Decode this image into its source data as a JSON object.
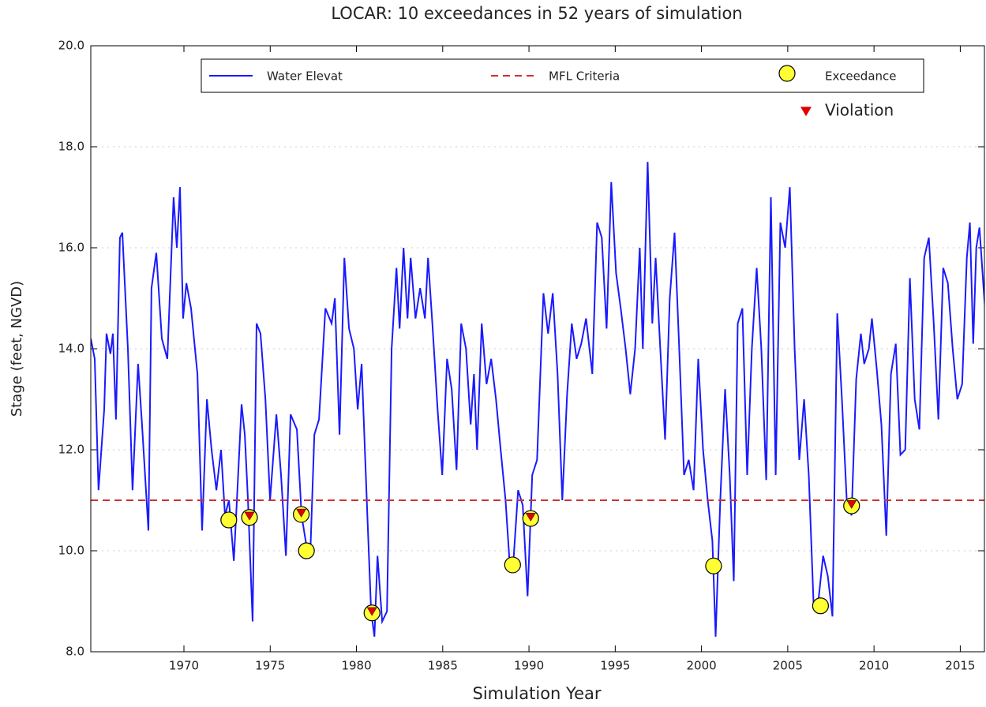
{
  "chart_data": {
    "type": "line",
    "title": "LOCAR: 10 exceedances in 52 years of simulation",
    "x_label": "Simulation Year",
    "y_label": "Stage (feet, NGVD)",
    "xlim": [
      1964.6,
      2016.4
    ],
    "ylim": [
      8,
      20
    ],
    "xticks": [
      1970,
      1975,
      1980,
      1985,
      1990,
      1995,
      2000,
      2005,
      2010,
      2015
    ],
    "yticks": [
      {
        "value": 8,
        "label": "8.0"
      },
      {
        "value": 10,
        "label": "10.0"
      },
      {
        "value": 12,
        "label": "12.0"
      },
      {
        "value": 14,
        "label": "14.0"
      },
      {
        "value": 16,
        "label": "16.0"
      },
      {
        "value": 18,
        "label": "18.0"
      },
      {
        "value": 20,
        "label": "20.0"
      }
    ],
    "grid": true,
    "series": [
      {
        "name": "Water Elevat",
        "color": "#1a1aff",
        "x": [
          1964.6,
          1964.83,
          1965.05,
          1965.38,
          1965.51,
          1965.74,
          1965.88,
          1966.06,
          1966.29,
          1966.43,
          1966.75,
          1967.02,
          1967.34,
          1967.57,
          1967.94,
          1968.12,
          1968.4,
          1968.72,
          1969.04,
          1969.4,
          1969.59,
          1969.77,
          1969.95,
          1970.14,
          1970.41,
          1970.78,
          1971.05,
          1971.33,
          1971.6,
          1971.88,
          1972.15,
          1972.38,
          1972.61,
          1972.89,
          1973.07,
          1973.34,
          1973.53,
          1973.71,
          1973.98,
          1974.21,
          1974.44,
          1974.72,
          1974.99,
          1975.36,
          1975.63,
          1975.91,
          1976.18,
          1976.55,
          1976.82,
          1977.1,
          1977.33,
          1977.56,
          1977.83,
          1978.2,
          1978.56,
          1978.75,
          1979.02,
          1979.3,
          1979.57,
          1979.85,
          1980.07,
          1980.3,
          1980.62,
          1980.85,
          1981.04,
          1981.22,
          1981.49,
          1981.77,
          1982.04,
          1982.32,
          1982.5,
          1982.73,
          1982.96,
          1983.14,
          1983.42,
          1983.69,
          1983.97,
          1984.15,
          1984.42,
          1984.7,
          1984.97,
          1985.25,
          1985.52,
          1985.8,
          1986.07,
          1986.35,
          1986.62,
          1986.81,
          1986.99,
          1987.26,
          1987.54,
          1987.81,
          1988.09,
          1988.36,
          1988.64,
          1988.87,
          1989.1,
          1989.37,
          1989.64,
          1989.92,
          1990.19,
          1990.47,
          1990.84,
          1991.11,
          1991.38,
          1991.66,
          1991.93,
          1992.21,
          1992.48,
          1992.76,
          1993.03,
          1993.31,
          1993.67,
          1993.95,
          1994.22,
          1994.5,
          1994.77,
          1995.05,
          1995.32,
          1995.6,
          1995.87,
          1996.15,
          1996.42,
          1996.6,
          1996.88,
          1997.15,
          1997.34,
          1997.61,
          1997.89,
          1998.16,
          1998.44,
          1998.71,
          1998.99,
          1999.26,
          1999.54,
          1999.81,
          2000.09,
          2000.36,
          2000.63,
          2000.82,
          2001.09,
          2001.37,
          2001.64,
          2001.87,
          2002.1,
          2002.37,
          2002.65,
          2002.92,
          2003.2,
          2003.47,
          2003.75,
          2004.02,
          2004.3,
          2004.57,
          2004.85,
          2005.12,
          2005.4,
          2005.67,
          2005.95,
          2006.22,
          2006.5,
          2006.77,
          2007.05,
          2007.32,
          2007.59,
          2007.87,
          2008.14,
          2008.42,
          2008.7,
          2008.97,
          2009.24,
          2009.43,
          2009.7,
          2009.88,
          2010.16,
          2010.43,
          2010.71,
          2010.98,
          2011.26,
          2011.53,
          2011.81,
          2012.08,
          2012.36,
          2012.63,
          2012.91,
          2013.18,
          2013.46,
          2013.73,
          2014.01,
          2014.28,
          2014.56,
          2014.83,
          2015.11,
          2015.38,
          2015.56,
          2015.75,
          2015.93,
          2016.11,
          2016.43
        ],
        "values": [
          14.2,
          13.8,
          11.2,
          12.8,
          14.3,
          13.9,
          14.3,
          12.6,
          16.2,
          16.3,
          14.0,
          11.2,
          13.7,
          12.5,
          10.4,
          15.2,
          15.9,
          14.2,
          13.8,
          17.0,
          16.0,
          17.2,
          14.6,
          15.3,
          14.8,
          13.5,
          10.4,
          13.0,
          12.0,
          11.2,
          12.0,
          10.7,
          11.0,
          9.8,
          11.0,
          12.9,
          12.3,
          11.0,
          8.6,
          14.5,
          14.3,
          13.0,
          11.0,
          12.7,
          11.5,
          9.9,
          12.7,
          12.4,
          10.7,
          10.1,
          10.0,
          12.3,
          12.6,
          14.8,
          14.5,
          15.0,
          12.3,
          15.8,
          14.4,
          14.0,
          12.8,
          13.7,
          10.8,
          8.8,
          8.3,
          9.9,
          8.6,
          8.8,
          14.0,
          15.6,
          14.4,
          16.0,
          14.6,
          15.8,
          14.6,
          15.2,
          14.6,
          15.8,
          14.4,
          12.8,
          11.5,
          13.8,
          13.2,
          11.6,
          14.5,
          14.0,
          12.5,
          13.5,
          12.0,
          14.5,
          13.3,
          13.8,
          13.0,
          12.0,
          11.0,
          9.8,
          9.8,
          11.2,
          10.9,
          9.1,
          11.5,
          11.8,
          15.1,
          14.3,
          15.1,
          13.5,
          11.0,
          13.1,
          14.5,
          13.8,
          14.1,
          14.6,
          13.5,
          16.5,
          16.2,
          14.4,
          17.3,
          15.5,
          14.8,
          14.0,
          13.1,
          14.0,
          16.0,
          14.0,
          17.7,
          14.5,
          15.8,
          14.0,
          12.2,
          15.0,
          16.3,
          14.0,
          11.5,
          11.8,
          11.2,
          13.8,
          12.0,
          11.0,
          10.2,
          8.3,
          11.0,
          13.2,
          11.5,
          9.4,
          14.5,
          14.8,
          11.5,
          14.0,
          15.6,
          14.0,
          11.4,
          17.0,
          11.5,
          16.5,
          16.0,
          17.2,
          14.0,
          11.8,
          13.0,
          11.5,
          8.9,
          9.0,
          9.9,
          9.5,
          8.7,
          14.7,
          13.0,
          11.0,
          10.7,
          13.4,
          14.3,
          13.7,
          14.0,
          14.6,
          13.6,
          12.5,
          10.3,
          13.5,
          14.1,
          11.9,
          12.0,
          15.4,
          13.0,
          12.4,
          15.8,
          16.2,
          14.5,
          12.6,
          15.6,
          15.3,
          14.0,
          13.0,
          13.3,
          15.8,
          16.5,
          14.1,
          16.0,
          16.4,
          14.8
        ]
      },
      {
        "name": "Exceedance",
        "color": "#ffff33",
        "x": [
          1972.6,
          1973.8,
          1976.8,
          1977.1,
          1980.9,
          1989.05,
          1990.1,
          2000.7,
          2006.9,
          2008.7
        ],
        "values": [
          10.61,
          10.66,
          10.72,
          10.0,
          8.77,
          9.72,
          10.64,
          9.7,
          8.91,
          10.89
        ]
      },
      {
        "name": "Violation",
        "color": "#e00000",
        "x": [
          1973.8,
          1976.8,
          1980.9,
          1990.1,
          2008.7
        ],
        "values": [
          10.66,
          10.72,
          8.77,
          10.64,
          10.89
        ]
      }
    ],
    "hline": {
      "name": "MFL Criteria",
      "value": 11,
      "color": "#cc3333"
    }
  }
}
